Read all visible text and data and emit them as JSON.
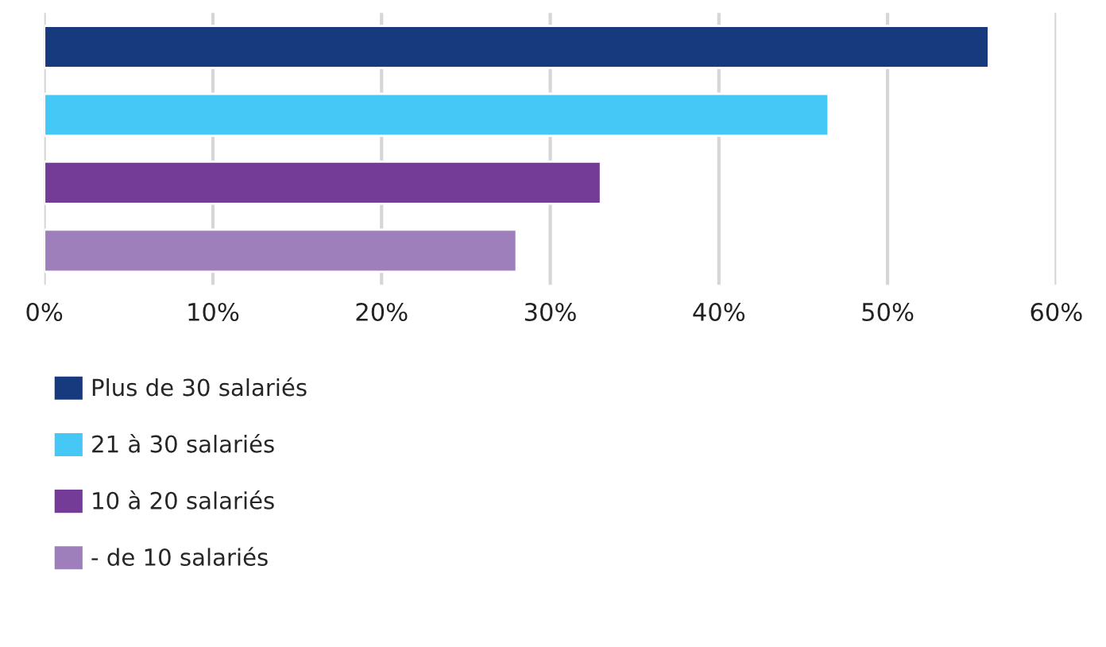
{
  "chart_data": {
    "type": "bar",
    "orientation": "horizontal",
    "categories": [
      null,
      null,
      null,
      null
    ],
    "series": [
      {
        "name": "Plus de 30 salariés",
        "color": "#173a7e",
        "values": [
          56,
          null,
          null,
          null
        ]
      },
      {
        "name": "21 à 30 salariés",
        "color": "#45c8f5",
        "values": [
          null,
          46.5,
          null,
          null
        ]
      },
      {
        "name": "10 à 20 salariés",
        "color": "#743c96",
        "values": [
          null,
          null,
          33,
          null
        ]
      },
      {
        "name": "- de 10 salariés",
        "color": "#9e7fbb",
        "values": [
          null,
          null,
          null,
          28
        ]
      }
    ],
    "xlim": [
      0,
      60
    ],
    "xticks": [
      {
        "value": 0,
        "label": "0%"
      },
      {
        "value": 10,
        "label": "10%"
      },
      {
        "value": 20,
        "label": "20%"
      },
      {
        "value": 30,
        "label": "30%"
      },
      {
        "value": 40,
        "label": "40%"
      },
      {
        "value": 50,
        "label": "50%"
      },
      {
        "value": 60,
        "label": "60%"
      }
    ],
    "grid": "x",
    "legend": "bottom",
    "tick_labels": "x"
  }
}
